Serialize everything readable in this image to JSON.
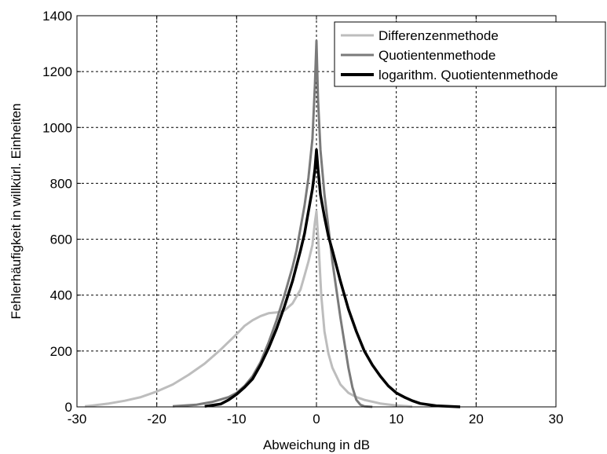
{
  "chart_data": {
    "type": "line",
    "xlabel": "Abweichung in dB",
    "ylabel": "Fehlerhäufigkeit in willkürl. Einheiten",
    "xlim": [
      -30,
      30
    ],
    "ylim": [
      0,
      1400
    ],
    "xticks": [
      "-30",
      "-20",
      "-10",
      "0",
      "10",
      "20",
      "30"
    ],
    "yticks": [
      "0",
      "200",
      "400",
      "600",
      "800",
      "1000",
      "1200",
      "1400"
    ],
    "grid": true,
    "legend_position": "top-right",
    "series": [
      {
        "name": "Differenzenmethode",
        "color": "#bdbdbd",
        "x": [
          -29,
          -28,
          -26,
          -24,
          -22,
          -20,
          -18,
          -16,
          -14,
          -12,
          -10,
          -9,
          -8,
          -7,
          -6,
          -5,
          -4,
          -3,
          -2,
          -1.5,
          -1,
          -0.5,
          -0.2,
          0,
          0.3,
          0.6,
          1,
          1.5,
          2,
          3,
          4,
          5,
          6,
          8,
          10,
          12
        ],
        "y": [
          2,
          5,
          12,
          22,
          35,
          55,
          80,
          115,
          155,
          205,
          260,
          290,
          310,
          325,
          335,
          338,
          345,
          370,
          420,
          470,
          520,
          580,
          660,
          700,
          560,
          400,
          270,
          190,
          140,
          80,
          50,
          35,
          25,
          12,
          5,
          1
        ]
      },
      {
        "name": "Quotientenmethode",
        "color": "#7a7a7a",
        "x": [
          -18,
          -15,
          -13,
          -11,
          -10,
          -9,
          -8,
          -7,
          -6,
          -5,
          -4,
          -3,
          -2.5,
          -2,
          -1.5,
          -1,
          -0.5,
          -0.2,
          0,
          0.2,
          0.5,
          1,
          1.5,
          2,
          2.5,
          3,
          3.5,
          4,
          4.5,
          5,
          5.5,
          6,
          7
        ],
        "y": [
          2,
          8,
          18,
          35,
          50,
          75,
          110,
          160,
          230,
          310,
          400,
          500,
          560,
          640,
          720,
          820,
          960,
          1150,
          1310,
          1100,
          920,
          760,
          640,
          520,
          420,
          320,
          230,
          140,
          70,
          25,
          8,
          2,
          0
        ]
      },
      {
        "name": "logarithm. Quotientenmethode",
        "color": "#000000",
        "x": [
          -14,
          -12,
          -11,
          -10,
          -9,
          -8,
          -7,
          -6,
          -5,
          -4,
          -3,
          -2,
          -1.5,
          -1,
          -0.5,
          -0.2,
          0,
          0.2,
          0.5,
          1,
          1.5,
          2,
          3,
          4,
          5,
          6,
          7,
          8,
          9,
          10,
          11,
          12,
          13,
          15,
          18
        ],
        "y": [
          2,
          10,
          25,
          45,
          70,
          100,
          150,
          210,
          280,
          360,
          450,
          560,
          620,
          700,
          780,
          850,
          920,
          850,
          760,
          680,
          610,
          560,
          450,
          350,
          270,
          200,
          150,
          110,
          75,
          50,
          35,
          22,
          12,
          4,
          0
        ]
      }
    ]
  }
}
